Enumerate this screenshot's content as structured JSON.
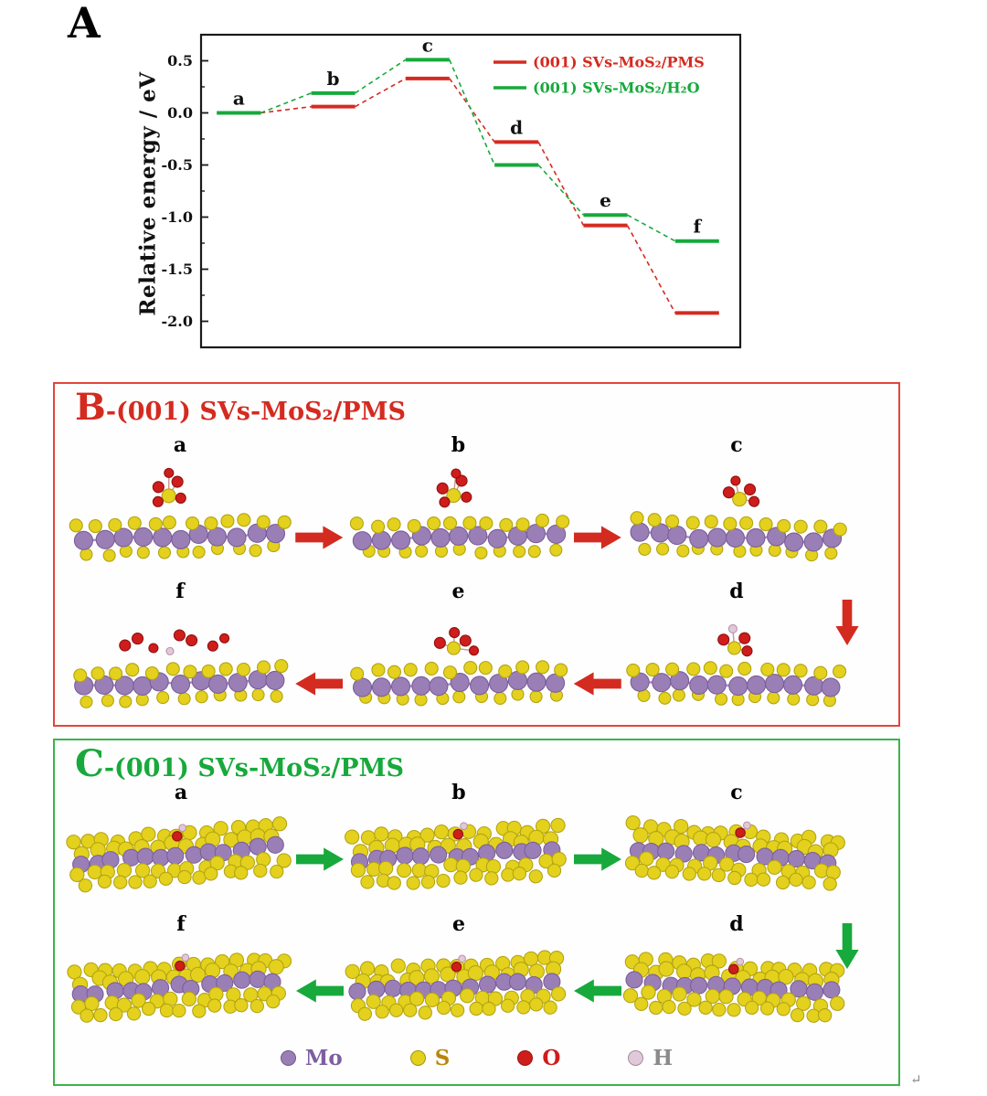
{
  "colors": {
    "red": "#d42b20",
    "green": "#17a93c",
    "mo": "#9a7fb7",
    "s": "#e3d11d",
    "o": "#cf1d1b",
    "h": "#e2c9da",
    "panel_border_red": "#e4453b",
    "panel_border_green": "#3cb44a"
  },
  "panel_a": {
    "label": "A"
  },
  "chart_data": {
    "type": "line",
    "subtype": "energy-profile",
    "title": "",
    "xlabel": "",
    "ylabel": "Relative energy / eV",
    "stages": [
      "a",
      "b",
      "c",
      "d",
      "e",
      "f"
    ],
    "ylim": [
      -2.25,
      0.75
    ],
    "yticks": [
      0.5,
      0.0,
      -0.5,
      -1.0,
      -1.5,
      -2.0
    ],
    "grid": false,
    "legend_position": "top-right",
    "series": [
      {
        "name": "(001) SVs-MoS₂/PMS",
        "color_key": "red",
        "values": [
          0.0,
          0.06,
          0.33,
          -0.28,
          -1.08,
          -1.92
        ]
      },
      {
        "name": "(001) SVs-MoS₂/H₂O",
        "color_key": "green",
        "values": [
          0.0,
          0.19,
          0.51,
          -0.5,
          -0.98,
          -1.23
        ]
      }
    ]
  },
  "panel_b": {
    "letter": "B",
    "title": "-(001) SVs-MoS₂/PMS",
    "top_labels": [
      "a",
      "b",
      "c"
    ],
    "bottom_labels": [
      "f",
      "e",
      "d"
    ]
  },
  "panel_c": {
    "letter": "C",
    "title": "-(001) SVs-MoS₂/PMS",
    "top_labels": [
      "a",
      "b",
      "c"
    ],
    "bottom_labels": [
      "f",
      "e",
      "d"
    ]
  },
  "legend": {
    "items": [
      {
        "label": "Mo",
        "color": "#9a7fb7",
        "text_color": "#7d5fa0"
      },
      {
        "label": "S",
        "color": "#e3d11d",
        "text_color": "#b8860b"
      },
      {
        "label": "O",
        "color": "#cf1d1b",
        "text_color": "#cf1d1b"
      },
      {
        "label": "H",
        "color": "#e2c9da",
        "text_color": "#8a8a8a"
      }
    ]
  },
  "misc": {
    "return_mark": "↵"
  }
}
